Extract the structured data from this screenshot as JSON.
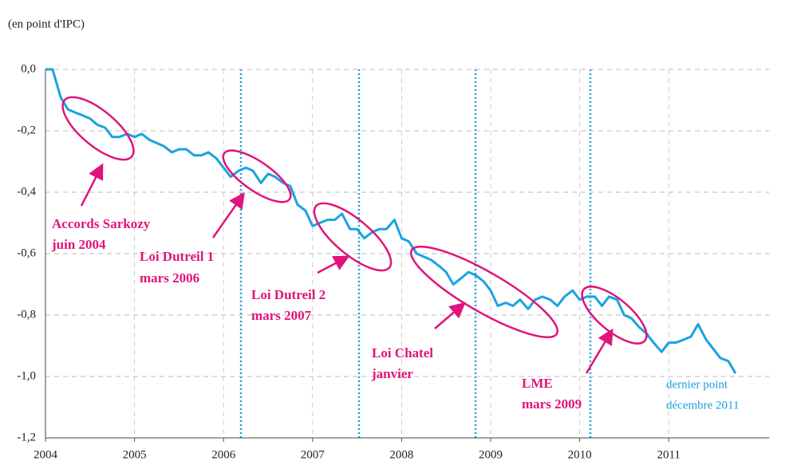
{
  "chart_data": {
    "type": "line",
    "y_label": "(en point d'IPC)",
    "x": [
      2004.0,
      2004.08,
      2004.17,
      2004.25,
      2004.33,
      2004.42,
      2004.5,
      2004.58,
      2004.67,
      2004.75,
      2004.83,
      2004.92,
      2005.0,
      2005.08,
      2005.17,
      2005.25,
      2005.33,
      2005.42,
      2005.5,
      2005.58,
      2005.67,
      2005.75,
      2005.83,
      2005.92,
      2006.0,
      2006.08,
      2006.17,
      2006.25,
      2006.33,
      2006.42,
      2006.5,
      2006.58,
      2006.67,
      2006.75,
      2006.83,
      2006.92,
      2007.0,
      2007.08,
      2007.17,
      2007.25,
      2007.33,
      2007.42,
      2007.5,
      2007.58,
      2007.67,
      2007.75,
      2007.83,
      2007.92,
      2008.0,
      2008.08,
      2008.17,
      2008.25,
      2008.33,
      2008.42,
      2008.5,
      2008.58,
      2008.67,
      2008.75,
      2008.83,
      2008.92,
      2009.0,
      2009.08,
      2009.17,
      2009.25,
      2009.33,
      2009.42,
      2009.5,
      2009.58,
      2009.67,
      2009.75,
      2009.83,
      2009.92,
      2010.0,
      2010.08,
      2010.17,
      2010.25,
      2010.33,
      2010.42,
      2010.5,
      2010.58,
      2010.67,
      2010.75,
      2010.83,
      2010.92,
      2011.0,
      2011.08,
      2011.17,
      2011.25,
      2011.33,
      2011.42,
      2011.5,
      2011.58,
      2011.67,
      2011.75
    ],
    "series": [
      {
        "color": "#1aa3e0",
        "values": [
          0.0,
          0.0,
          -0.09,
          -0.13,
          -0.14,
          -0.15,
          -0.16,
          -0.18,
          -0.19,
          -0.22,
          -0.22,
          -0.21,
          -0.22,
          -0.21,
          -0.23,
          -0.24,
          -0.25,
          -0.27,
          -0.26,
          -0.26,
          -0.28,
          -0.28,
          -0.27,
          -0.29,
          -0.32,
          -0.35,
          -0.33,
          -0.32,
          -0.33,
          -0.37,
          -0.34,
          -0.35,
          -0.37,
          -0.38,
          -0.44,
          -0.46,
          -0.51,
          -0.5,
          -0.49,
          -0.49,
          -0.47,
          -0.52,
          -0.52,
          -0.55,
          -0.53,
          -0.52,
          -0.52,
          -0.49,
          -0.55,
          -0.56,
          -0.6,
          -0.61,
          -0.62,
          -0.64,
          -0.66,
          -0.7,
          -0.68,
          -0.66,
          -0.67,
          -0.69,
          -0.72,
          -0.77,
          -0.76,
          -0.77,
          -0.75,
          -0.78,
          -0.75,
          -0.74,
          -0.75,
          -0.77,
          -0.74,
          -0.72,
          -0.75,
          -0.74,
          -0.74,
          -0.77,
          -0.74,
          -0.75,
          -0.8,
          -0.81,
          -0.84,
          -0.86,
          -0.89,
          -0.92,
          -0.89,
          -0.89,
          -0.88,
          -0.87,
          -0.83,
          -0.88,
          -0.91,
          -0.94,
          -0.95,
          -0.99
        ]
      }
    ],
    "xlim": [
      2004,
      2012.13
    ],
    "xticks": [
      2004,
      2005,
      2006,
      2007,
      2008,
      2009,
      2010,
      2011
    ],
    "ylim": [
      -1.2,
      0.0
    ],
    "yticks": [
      {
        "value": 0.0,
        "label": "0,0"
      },
      {
        "value": -0.2,
        "label": "-0,2"
      },
      {
        "value": -0.4,
        "label": "-0,4"
      },
      {
        "value": -0.6,
        "label": "-0,6"
      },
      {
        "value": -0.8,
        "label": "-0,8"
      },
      {
        "value": -1.0,
        "label": "-1,0"
      },
      {
        "value": -1.2,
        "label": "-1,2"
      }
    ],
    "grid": true,
    "annotations": [
      [
        "Accords Sarkozy",
        "juin 2004"
      ],
      [
        "Loi Dutreil 1",
        "mars 2006"
      ],
      [
        "Loi Dutreil 2",
        "mars 2007"
      ],
      [
        "Loi Chatel",
        "janvier"
      ],
      [
        "LME",
        "mars 2009"
      ]
    ],
    "note": [
      "dernier point",
      "décembre 2011"
    ]
  }
}
